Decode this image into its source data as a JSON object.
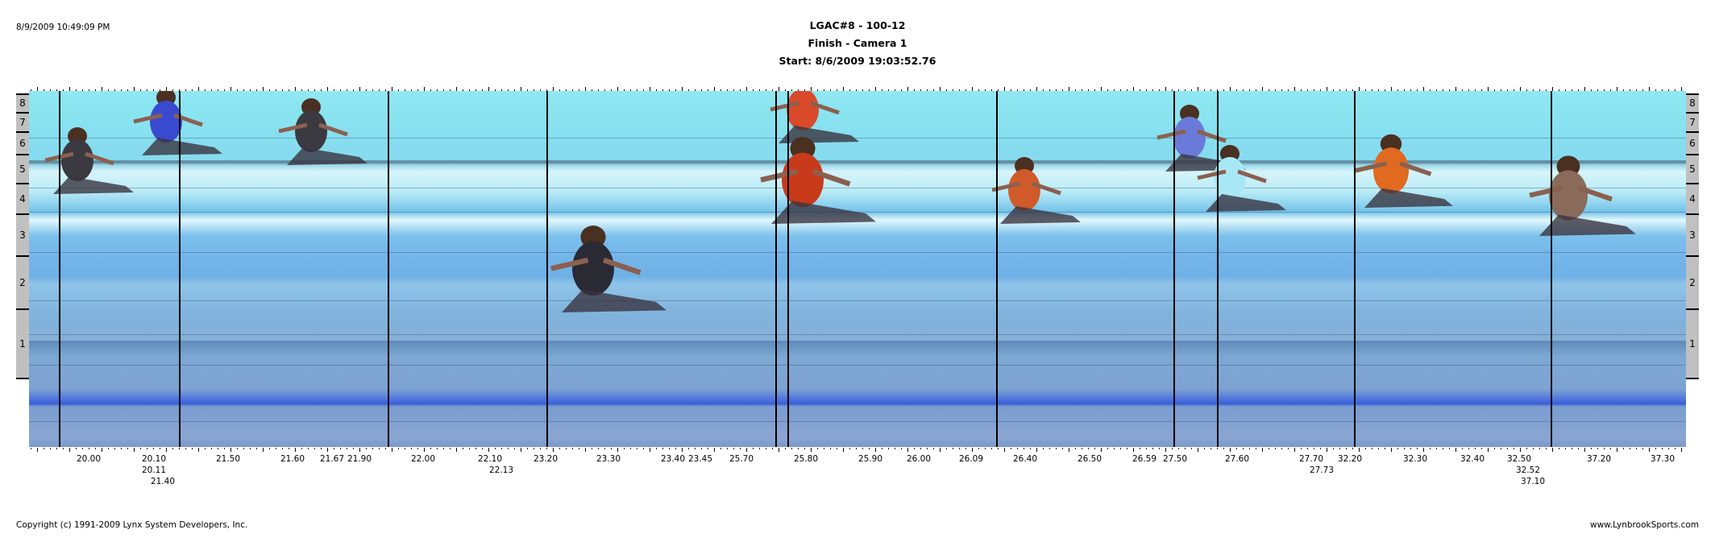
{
  "header": {
    "printed_at": "8/9/2009 10:49:09 PM",
    "event": "LGAC#8 - 100-12",
    "camera": "Finish - Camera 1",
    "start": "Start: 8/6/2009 19:03:52.76"
  },
  "lanes": [
    "8",
    "7",
    "6",
    "5",
    "4",
    "3",
    "2",
    "1"
  ],
  "time_labels": [
    "20.00",
    "20.10",
    "20.11",
    "21.40",
    "21.50",
    "21.60",
    "21.67",
    "21.90",
    "22.00",
    "22.10",
    "22.13",
    "23.20",
    "23.30",
    "23.40",
    "23.45",
    "25.70",
    "25.80",
    "25.90",
    "26.00",
    "26.09",
    "26.40",
    "26.50",
    "26.59",
    "27.50",
    "27.60",
    "27.70",
    "27.73",
    "32.20",
    "32.30",
    "32.40",
    "32.50",
    "32.52",
    "37.10",
    "37.20",
    "37.30"
  ],
  "footer": {
    "copyright": "Copyright (c) 1991-2009 Lynx System Developers, Inc.",
    "website": "www.LynbrookSports.com"
  },
  "colors": {
    "lane_box": "#c0c0c0",
    "photo_sky": "#8fe8f2",
    "photo_track": "#7ea8d4",
    "finish_line": "#3c62e0"
  }
}
